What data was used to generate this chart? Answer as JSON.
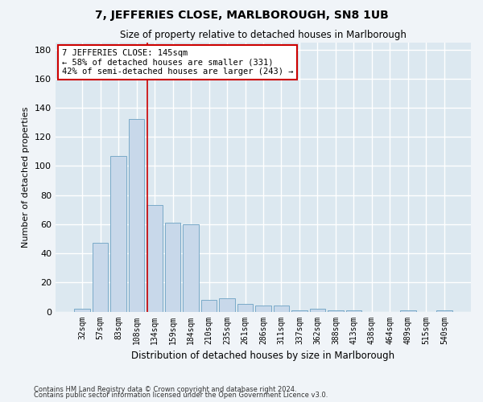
{
  "title": "7, JEFFERIES CLOSE, MARLBOROUGH, SN8 1UB",
  "subtitle": "Size of property relative to detached houses in Marlborough",
  "xlabel": "Distribution of detached houses by size in Marlborough",
  "ylabel": "Number of detached properties",
  "bar_color": "#c8d8ea",
  "bar_edge_color": "#7aaac8",
  "bg_color": "#dce8f0",
  "grid_color": "#ffffff",
  "bins": [
    "32sqm",
    "57sqm",
    "83sqm",
    "108sqm",
    "134sqm",
    "159sqm",
    "184sqm",
    "210sqm",
    "235sqm",
    "261sqm",
    "286sqm",
    "311sqm",
    "337sqm",
    "362sqm",
    "388sqm",
    "413sqm",
    "438sqm",
    "464sqm",
    "489sqm",
    "515sqm",
    "540sqm"
  ],
  "values": [
    2,
    47,
    107,
    132,
    73,
    61,
    60,
    8,
    9,
    5,
    4,
    4,
    1,
    2,
    1,
    1,
    0,
    0,
    1,
    0,
    1
  ],
  "ylim": [
    0,
    185
  ],
  "yticks": [
    0,
    20,
    40,
    60,
    80,
    100,
    120,
    140,
    160,
    180
  ],
  "property_line_x": 3.62,
  "annotation_line1": "7 JEFFERIES CLOSE: 145sqm",
  "annotation_line2": "← 58% of detached houses are smaller (331)",
  "annotation_line3": "42% of semi-detached houses are larger (243) →",
  "annotation_box_color": "#ffffff",
  "annotation_box_edge": "#cc0000",
  "footer1": "Contains HM Land Registry data © Crown copyright and database right 2024.",
  "footer2": "Contains public sector information licensed under the Open Government Licence v3.0.",
  "line_color": "#cc0000",
  "fig_bg_color": "#f0f4f8"
}
